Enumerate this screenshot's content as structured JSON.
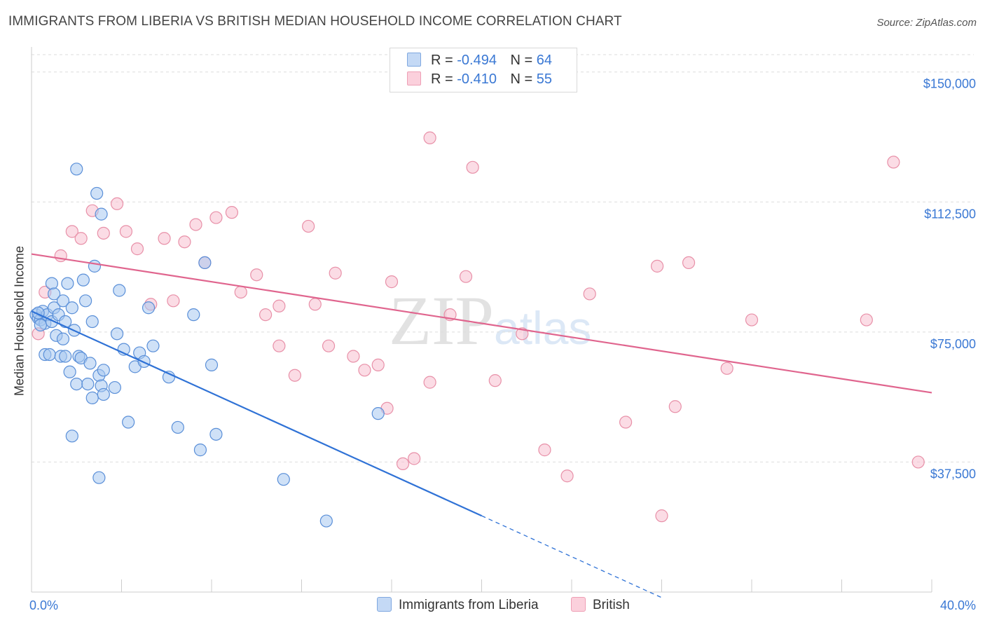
{
  "header": {
    "title": "IMMIGRANTS FROM LIBERIA VS BRITISH MEDIAN HOUSEHOLD INCOME CORRELATION CHART",
    "source": "Source: ZipAtlas.com"
  },
  "watermark": {
    "zip": "ZIP",
    "atlas": "atlas"
  },
  "legend": {
    "rows": [
      {
        "r_label": "R =",
        "r_value": "-0.494",
        "n_label": "N =",
        "n_value": "64",
        "color": "#a8c8f0"
      },
      {
        "r_label": "R =",
        "r_value": "-0.410",
        "n_label": "N =",
        "n_value": "55",
        "color": "#f5b8c8"
      }
    ]
  },
  "bottom_legend": {
    "series_a": "Immigrants from Liberia",
    "series_b": "British"
  },
  "colors": {
    "blue_fill": "#a8c8f0",
    "blue_stroke": "#5a8fd8",
    "blue_line": "#2f72d6",
    "pink_fill": "#f8c0d0",
    "pink_stroke": "#e890a8",
    "pink_line": "#e0658e",
    "axis_text": "#3a78d4",
    "grid": "#dddddd"
  },
  "chart_data": {
    "type": "scatter",
    "title": "IMMIGRANTS FROM LIBERIA VS BRITISH MEDIAN HOUSEHOLD INCOME CORRELATION CHART",
    "xlabel": "",
    "ylabel": "Median Household Income",
    "xlim": [
      0,
      40
    ],
    "ylim": [
      0,
      155000
    ],
    "x_tick_labels": [
      "0.0%",
      "40.0%"
    ],
    "y_ticks": [
      37500,
      75000,
      112500,
      150000
    ],
    "y_tick_labels": [
      "$37,500",
      "$75,000",
      "$112,500",
      "$150,000"
    ],
    "grid": true,
    "legend_position": "top-center",
    "series": [
      {
        "name": "Immigrants from Liberia",
        "color": "#a8c8f0",
        "points": [
          [
            0.2,
            80000
          ],
          [
            0.3,
            79000
          ],
          [
            0.4,
            78500
          ],
          [
            0.5,
            81000
          ],
          [
            0.6,
            77500
          ],
          [
            0.6,
            68500
          ],
          [
            0.7,
            80000
          ],
          [
            0.8,
            68500
          ],
          [
            0.9,
            78000
          ],
          [
            0.9,
            89000
          ],
          [
            1.0,
            86000
          ],
          [
            1.0,
            82000
          ],
          [
            1.1,
            74000
          ],
          [
            1.2,
            80000
          ],
          [
            1.3,
            68000
          ],
          [
            1.4,
            84000
          ],
          [
            1.4,
            73000
          ],
          [
            1.5,
            68000
          ],
          [
            1.6,
            89000
          ],
          [
            1.7,
            63500
          ],
          [
            1.8,
            82000
          ],
          [
            1.9,
            75500
          ],
          [
            2.0,
            60000
          ],
          [
            2.1,
            68000
          ],
          [
            2.2,
            67500
          ],
          [
            2.3,
            90000
          ],
          [
            2.4,
            84000
          ],
          [
            2.5,
            60000
          ],
          [
            2.6,
            66000
          ],
          [
            2.7,
            78000
          ],
          [
            2.7,
            56000
          ],
          [
            2.8,
            94000
          ],
          [
            3.0,
            62500
          ],
          [
            3.1,
            59500
          ],
          [
            3.2,
            64000
          ],
          [
            3.2,
            57000
          ],
          [
            3.7,
            59000
          ],
          [
            3.8,
            74500
          ],
          [
            3.9,
            87000
          ],
          [
            4.1,
            70000
          ],
          [
            4.3,
            49000
          ],
          [
            4.6,
            65000
          ],
          [
            4.8,
            69000
          ],
          [
            5.0,
            66500
          ],
          [
            5.2,
            82000
          ],
          [
            5.4,
            71000
          ],
          [
            6.1,
            62000
          ],
          [
            6.5,
            47500
          ],
          [
            7.2,
            80000
          ],
          [
            7.5,
            41000
          ],
          [
            7.7,
            95000
          ],
          [
            8.0,
            65500
          ],
          [
            8.2,
            45500
          ],
          [
            2.0,
            122000
          ],
          [
            2.9,
            115000
          ],
          [
            3.1,
            109000
          ],
          [
            3.0,
            33000
          ],
          [
            1.8,
            45000
          ],
          [
            11.2,
            32500
          ],
          [
            13.1,
            20500
          ],
          [
            15.4,
            51500
          ],
          [
            0.4,
            77000
          ],
          [
            0.3,
            80500
          ],
          [
            1.5,
            78000
          ]
        ],
        "trend": {
          "x0": 0,
          "y0": 81000,
          "x1": 20,
          "y1": 22000,
          "dashed_to_x": 28
        }
      },
      {
        "name": "British",
        "color": "#f8c0d0",
        "points": [
          [
            0.3,
            74500
          ],
          [
            0.6,
            86500
          ],
          [
            1.3,
            97000
          ],
          [
            1.8,
            104000
          ],
          [
            2.2,
            102000
          ],
          [
            2.7,
            110000
          ],
          [
            3.2,
            103500
          ],
          [
            3.8,
            112000
          ],
          [
            4.2,
            104000
          ],
          [
            4.7,
            99000
          ],
          [
            5.3,
            83000
          ],
          [
            5.9,
            102000
          ],
          [
            6.3,
            84000
          ],
          [
            6.8,
            101000
          ],
          [
            7.3,
            106000
          ],
          [
            7.7,
            95000
          ],
          [
            8.2,
            108000
          ],
          [
            8.9,
            109500
          ],
          [
            9.3,
            86500
          ],
          [
            10.0,
            91500
          ],
          [
            10.4,
            80000
          ],
          [
            11.0,
            82500
          ],
          [
            11.0,
            71000
          ],
          [
            11.7,
            62500
          ],
          [
            12.3,
            105500
          ],
          [
            12.6,
            83000
          ],
          [
            13.2,
            71000
          ],
          [
            13.5,
            92000
          ],
          [
            14.3,
            68000
          ],
          [
            14.8,
            64000
          ],
          [
            15.4,
            65500
          ],
          [
            15.8,
            53000
          ],
          [
            16.0,
            89500
          ],
          [
            16.5,
            37000
          ],
          [
            17.0,
            38500
          ],
          [
            17.7,
            131000
          ],
          [
            17.7,
            60500
          ],
          [
            18.6,
            80000
          ],
          [
            19.3,
            91000
          ],
          [
            19.6,
            122500
          ],
          [
            20.6,
            61000
          ],
          [
            21.8,
            74500
          ],
          [
            22.8,
            41000
          ],
          [
            23.8,
            33500
          ],
          [
            24.8,
            86000
          ],
          [
            26.4,
            49000
          ],
          [
            27.8,
            94000
          ],
          [
            28.6,
            53500
          ],
          [
            29.2,
            95000
          ],
          [
            30.9,
            64500
          ],
          [
            32.0,
            78500
          ],
          [
            37.1,
            78500
          ],
          [
            38.3,
            124000
          ],
          [
            39.4,
            37500
          ],
          [
            28.0,
            22000
          ]
        ],
        "trend": {
          "x0": 0,
          "y0": 97500,
          "x1": 40,
          "y1": 57500
        }
      }
    ]
  }
}
